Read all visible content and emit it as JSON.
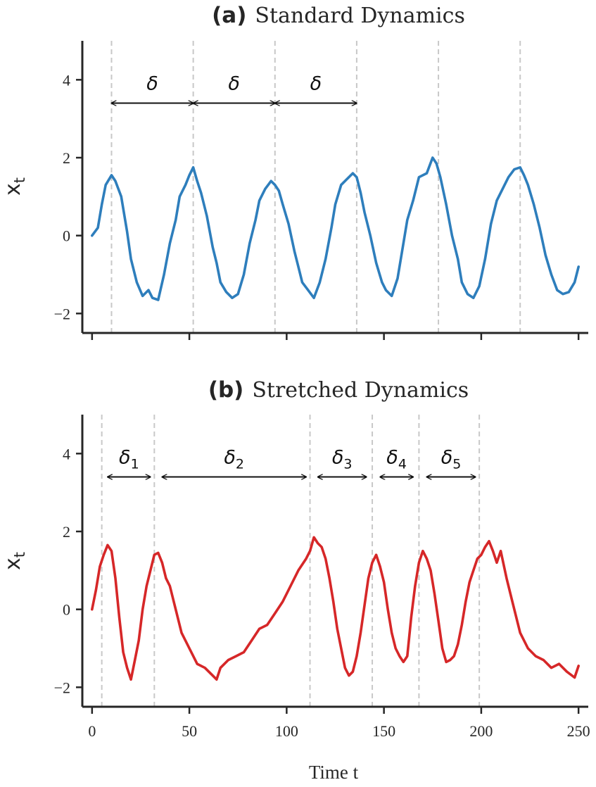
{
  "chart_data": [
    {
      "type": "line",
      "title_prefix": "(a)",
      "title": "Standard Dynamics",
      "xlabel": "",
      "ylabel": "x",
      "ylabel_sub": "t",
      "xlim": [
        -5,
        255
      ],
      "ylim": [
        -2.5,
        5
      ],
      "xticks": [
        0,
        50,
        100,
        150,
        200,
        250
      ],
      "yticks": [
        -2,
        0,
        2,
        4
      ],
      "ytick_labels": [
        "−2",
        "0",
        "2",
        "4"
      ],
      "series_color": "#2e7ebc",
      "boundary_color": "#c8c8c8",
      "boundaries": [
        10,
        52,
        94,
        136,
        178,
        220
      ],
      "annotations": [
        {
          "label": "δ",
          "sub": "",
          "from": 10,
          "to": 52,
          "y": 3.4
        },
        {
          "label": "δ",
          "sub": "",
          "from": 52,
          "to": 94,
          "y": 3.4
        },
        {
          "label": "δ",
          "sub": "",
          "from": 94,
          "to": 136,
          "y": 3.4
        }
      ],
      "x": [
        0,
        3,
        5,
        7,
        10,
        12,
        15,
        18,
        20,
        23,
        26,
        29,
        31,
        34,
        37,
        40,
        43,
        45,
        48,
        50,
        52,
        54,
        56,
        59,
        62,
        64,
        66,
        69,
        72,
        75,
        78,
        81,
        84,
        86,
        89,
        92,
        94,
        96,
        98,
        101,
        104,
        106,
        108,
        111,
        114,
        117,
        120,
        123,
        125,
        128,
        131,
        134,
        136,
        138,
        140,
        143,
        146,
        149,
        151,
        154,
        157,
        160,
        162,
        165,
        168,
        172,
        175,
        177,
        179,
        182,
        185,
        188,
        190,
        193,
        196,
        199,
        202,
        205,
        208,
        211,
        214,
        217,
        220,
        222,
        224,
        227,
        230,
        233,
        236,
        239,
        242,
        245,
        248,
        250
      ],
      "y": [
        0.0,
        0.2,
        0.8,
        1.3,
        1.55,
        1.4,
        1.0,
        0.1,
        -0.6,
        -1.2,
        -1.55,
        -1.4,
        -1.6,
        -1.65,
        -1.0,
        -0.2,
        0.4,
        1.0,
        1.3,
        1.55,
        1.75,
        1.4,
        1.1,
        0.5,
        -0.3,
        -0.7,
        -1.2,
        -1.45,
        -1.6,
        -1.5,
        -1.0,
        -0.2,
        0.4,
        0.9,
        1.2,
        1.4,
        1.3,
        1.15,
        0.8,
        0.3,
        -0.4,
        -0.8,
        -1.2,
        -1.4,
        -1.6,
        -1.2,
        -0.6,
        0.2,
        0.8,
        1.3,
        1.45,
        1.6,
        1.5,
        1.1,
        0.6,
        0.0,
        -0.7,
        -1.2,
        -1.4,
        -1.55,
        -1.1,
        -0.2,
        0.4,
        0.9,
        1.5,
        1.6,
        2.0,
        1.85,
        1.5,
        0.8,
        0.0,
        -0.6,
        -1.2,
        -1.5,
        -1.6,
        -1.3,
        -0.6,
        0.3,
        0.9,
        1.2,
        1.5,
        1.7,
        1.75,
        1.55,
        1.3,
        0.8,
        0.2,
        -0.5,
        -1.0,
        -1.4,
        -1.5,
        -1.45,
        -1.2,
        -0.8
      ]
    },
    {
      "type": "line",
      "title_prefix": "(b)",
      "title": "Stretched Dynamics",
      "xlabel": "Time t",
      "ylabel": "x",
      "ylabel_sub": "t",
      "xlim": [
        -5,
        255
      ],
      "ylim": [
        -2.5,
        5
      ],
      "xticks": [
        0,
        50,
        100,
        150,
        200,
        250
      ],
      "xtick_labels": [
        "0",
        "50",
        "100",
        "150",
        "200",
        "250"
      ],
      "yticks": [
        -2,
        0,
        2,
        4
      ],
      "ytick_labels": [
        "−2",
        "0",
        "2",
        "4"
      ],
      "series_color": "#d62728",
      "boundary_color": "#c8c8c8",
      "boundaries": [
        5,
        32,
        112,
        144,
        168,
        199
      ],
      "annotations": [
        {
          "label": "δ",
          "sub": "1",
          "from": 8,
          "to": 30,
          "y": 3.4
        },
        {
          "label": "δ",
          "sub": "2",
          "from": 36,
          "to": 110,
          "y": 3.4
        },
        {
          "label": "δ",
          "sub": "3",
          "from": 116,
          "to": 141,
          "y": 3.4
        },
        {
          "label": "δ",
          "sub": "4",
          "from": 148,
          "to": 165,
          "y": 3.4
        },
        {
          "label": "δ",
          "sub": "5",
          "from": 172,
          "to": 197,
          "y": 3.4
        }
      ],
      "x": [
        0,
        2,
        4,
        6,
        8,
        10,
        12,
        14,
        16,
        18,
        20,
        22,
        24,
        26,
        28,
        30,
        32,
        34,
        36,
        38,
        40,
        43,
        46,
        50,
        54,
        58,
        62,
        64,
        66,
        70,
        74,
        78,
        82,
        86,
        90,
        94,
        98,
        102,
        106,
        110,
        112,
        114,
        116,
        118,
        120,
        122,
        124,
        126,
        128,
        130,
        132,
        134,
        136,
        138,
        140,
        142,
        144,
        146,
        148,
        150,
        152,
        154,
        156,
        158,
        160,
        162,
        164,
        166,
        168,
        170,
        172,
        174,
        176,
        178,
        180,
        182,
        184,
        186,
        188,
        190,
        192,
        194,
        196,
        198,
        200,
        202,
        204,
        206,
        208,
        210,
        213,
        216,
        220,
        224,
        228,
        232,
        236,
        240,
        244,
        248,
        250
      ],
      "y": [
        0.0,
        0.5,
        1.1,
        1.4,
        1.65,
        1.5,
        0.8,
        -0.2,
        -1.1,
        -1.5,
        -1.8,
        -1.3,
        -0.8,
        0.0,
        0.6,
        1.0,
        1.4,
        1.45,
        1.2,
        0.8,
        0.6,
        0.0,
        -0.6,
        -1.0,
        -1.4,
        -1.5,
        -1.7,
        -1.8,
        -1.5,
        -1.3,
        -1.2,
        -1.1,
        -0.8,
        -0.5,
        -0.4,
        -0.1,
        0.2,
        0.6,
        1.0,
        1.3,
        1.5,
        1.85,
        1.7,
        1.6,
        1.3,
        0.8,
        0.2,
        -0.5,
        -1.0,
        -1.5,
        -1.7,
        -1.6,
        -1.2,
        -0.6,
        0.1,
        0.8,
        1.2,
        1.4,
        1.1,
        0.7,
        0.0,
        -0.6,
        -1.0,
        -1.2,
        -1.35,
        -1.2,
        -0.2,
        0.6,
        1.2,
        1.5,
        1.3,
        1.0,
        0.4,
        -0.3,
        -1.0,
        -1.35,
        -1.3,
        -1.2,
        -0.9,
        -0.4,
        0.2,
        0.7,
        1.0,
        1.3,
        1.4,
        1.6,
        1.75,
        1.5,
        1.2,
        1.5,
        0.8,
        0.2,
        -0.6,
        -1.0,
        -1.2,
        -1.3,
        -1.5,
        -1.4,
        -1.6,
        -1.75,
        -1.45
      ]
    }
  ]
}
